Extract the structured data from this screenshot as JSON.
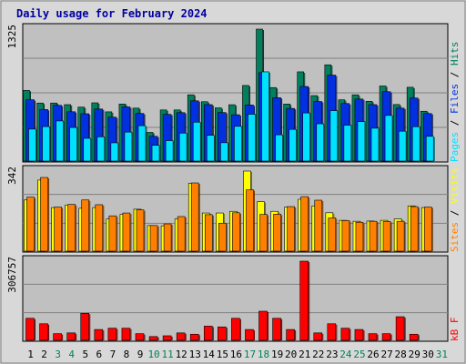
{
  "title": "Daily usage for February 2024",
  "colors": {
    "background": "#d8d8d8",
    "panel": "#c0c0c0",
    "grid": "#808080",
    "title": "#0000a0",
    "hits": "#00805c",
    "files": "#0030e0",
    "pages": "#00e0ff",
    "visits": "#ffff00",
    "sites": "#ff8000",
    "kbytes": "#ff0000",
    "weekday_label": "#000000",
    "weekend_label": "#00805c"
  },
  "chart_data": [
    {
      "type": "bar",
      "panel": "hits-files-pages",
      "ymax_label": "1325",
      "ylim": [
        0,
        1325
      ],
      "legend": [
        {
          "name": "Hits",
          "color_key": "hits"
        },
        {
          "name": "Files",
          "color_key": "files"
        },
        {
          "name": "Pages",
          "color_key": "pages"
        }
      ],
      "days": [
        "1",
        "2",
        "3",
        "4",
        "5",
        "6",
        "7",
        "8",
        "9",
        "10",
        "11",
        "12",
        "13",
        "14",
        "15",
        "16",
        "17",
        "18",
        "19",
        "20",
        "21",
        "22",
        "23",
        "24",
        "25",
        "26",
        "27",
        "28",
        "29",
        "30",
        "31"
      ],
      "weekend_days": [
        "3",
        "4",
        "10",
        "11",
        "17",
        "18",
        "24",
        "25",
        "31"
      ],
      "series": [
        {
          "name": "Hits",
          "color_key": "hits",
          "values": [
            714,
            588,
            588,
            572,
            547,
            590,
            500,
            578,
            537,
            295,
            519,
            519,
            670,
            601,
            540,
            571,
            763,
            1325,
            742,
            578,
            899,
            662,
            969,
            620,
            670,
            605,
            758,
            573,
            745,
            506,
            0
          ]
        },
        {
          "name": "Files",
          "color_key": "files",
          "values": [
            621,
            523,
            565,
            501,
            481,
            528,
            447,
            549,
            484,
            256,
            475,
            492,
            610,
            572,
            493,
            471,
            568,
            891,
            641,
            534,
            753,
            603,
            866,
            583,
            628,
            572,
            701,
            537,
            638,
            483,
            0
          ]
        },
        {
          "name": "Pages",
          "color_key": "pages",
          "values": [
            328,
            353,
            409,
            344,
            236,
            251,
            191,
            298,
            362,
            166,
            213,
            288,
            397,
            266,
            192,
            356,
            476,
            899,
            271,
            325,
            489,
            381,
            512,
            367,
            402,
            337,
            464,
            307,
            352,
            256,
            0
          ]
        }
      ]
    },
    {
      "type": "bar",
      "panel": "visits-sites",
      "ymax_label": "342",
      "ylim": [
        0,
        342
      ],
      "legend": [
        {
          "name": "Visits",
          "color_key": "visits"
        },
        {
          "name": "Sites",
          "color_key": "sites"
        }
      ],
      "series": [
        {
          "name": "Visits",
          "color_key": "visits",
          "values": [
            220,
            304,
            188,
            199,
            185,
            188,
            140,
            159,
            181,
            112,
            111,
            140,
            291,
            165,
            165,
            172,
            342,
            213,
            172,
            190,
            223,
            195,
            166,
            134,
            130,
            131,
            134,
            140,
            195,
            188,
            0
          ]
        },
        {
          "name": "Sites",
          "color_key": "sites",
          "values": [
            232,
            315,
            190,
            201,
            220,
            200,
            153,
            165,
            178,
            112,
            119,
            150,
            292,
            158,
            122,
            166,
            263,
            159,
            160,
            192,
            234,
            219,
            144,
            133,
            126,
            130,
            129,
            130,
            192,
            190,
            0
          ]
        }
      ]
    },
    {
      "type": "bar",
      "panel": "kbytes",
      "ymax_label": "306757",
      "ylim": [
        0,
        306757
      ],
      "legend": [
        {
          "name": "kB F",
          "color_key": "kbytes"
        }
      ],
      "series": [
        {
          "name": "kB F",
          "color_key": "kbytes",
          "values": [
            88000,
            67000,
            29000,
            32000,
            107000,
            45000,
            50000,
            50000,
            29000,
            18000,
            21000,
            32000,
            27000,
            58000,
            55000,
            88000,
            45000,
            115000,
            88000,
            45000,
            306757,
            32000,
            67000,
            50000,
            45000,
            29000,
            29000,
            94000,
            27000,
            0,
            0
          ]
        }
      ]
    }
  ]
}
